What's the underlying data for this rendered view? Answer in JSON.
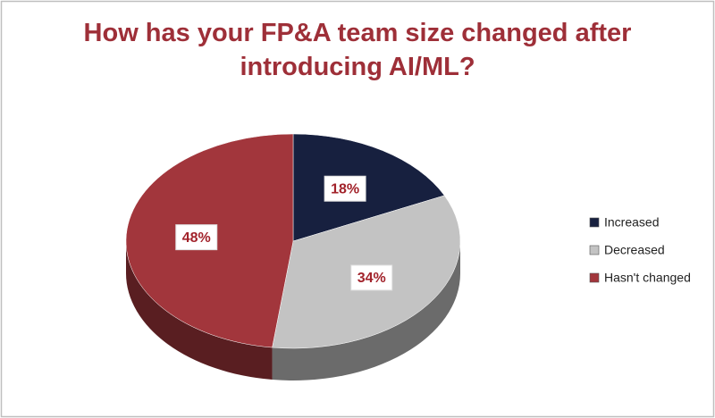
{
  "chart_data": {
    "type": "pie",
    "title": "How has your FP&A team size changed after introducing AI/ML?",
    "categories": [
      "Increased",
      "Decreased",
      "Hasn't changed"
    ],
    "values": [
      18,
      34,
      48
    ],
    "value_labels": [
      "18%",
      "34%",
      "48%"
    ],
    "colors": [
      "#17203f",
      "#c3c3c3",
      "#a2363c"
    ],
    "legend": "right"
  }
}
